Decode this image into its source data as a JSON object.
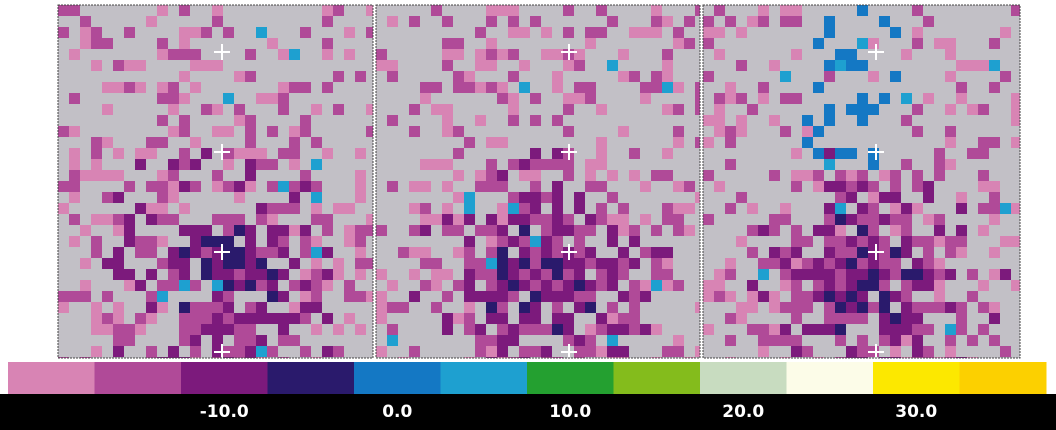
{
  "colorbar": {
    "colors": [
      "#d884b4",
      "#b04a98",
      "#7c1a7c",
      "#2a1a6c",
      "#1478c4",
      "#1ea0d0",
      "#24a030",
      "#84bc1c",
      "#c8dcc0",
      "#fcfce8",
      "#fce800",
      "#fcd000"
    ],
    "lim": [
      -22.5,
      37.5
    ],
    "ticks": [
      {
        "value": -10,
        "label": "-10.0"
      },
      {
        "value": 0,
        "label": "0.0"
      },
      {
        "value": 10,
        "label": "10.0"
      },
      {
        "value": 20,
        "label": "20.0"
      },
      {
        "value": 30,
        "label": "30.0"
      }
    ]
  }
}
